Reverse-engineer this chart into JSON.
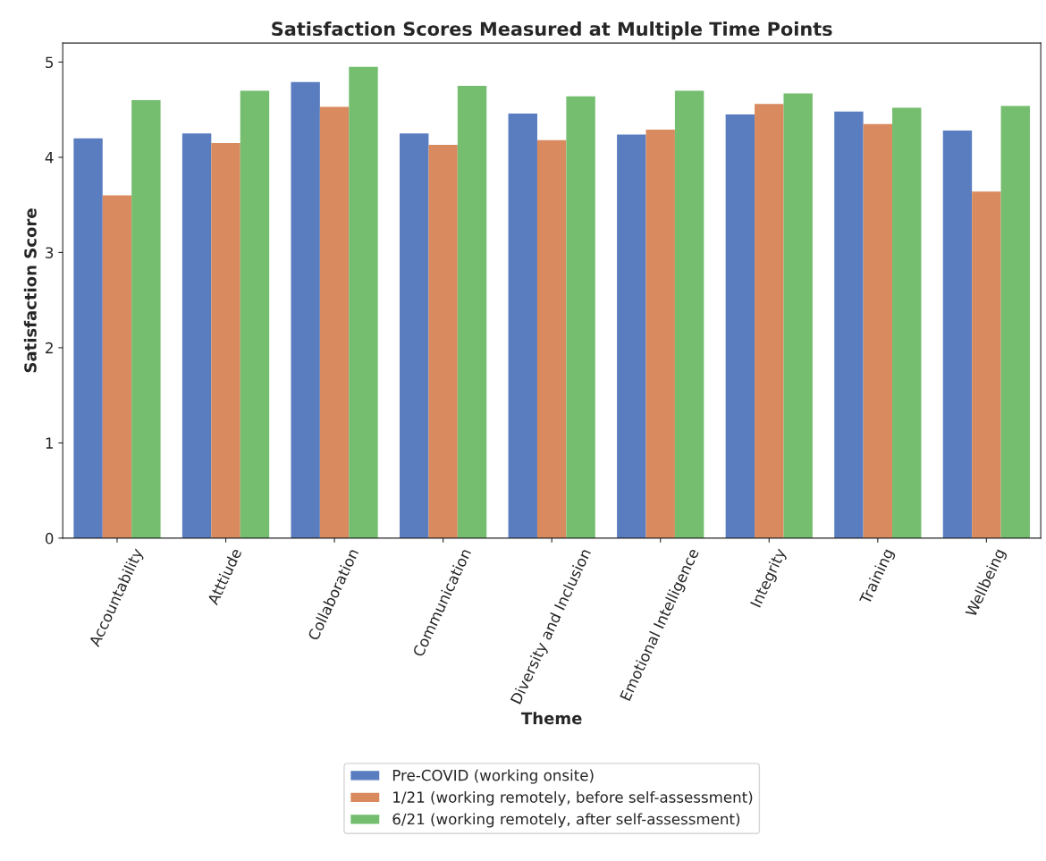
{
  "chart_data": {
    "type": "bar",
    "title": "Satisfaction Scores Measured at Multiple Time Points",
    "xlabel": "Theme",
    "ylabel": "Satisfaction Score",
    "categories": [
      "Accountability",
      "Atttiude",
      "Collaboration",
      "Communication",
      "Diversity and Inclusion",
      "Emotional Intelligence",
      "Integrity",
      "Training",
      "Wellbeing"
    ],
    "series": [
      {
        "name": "Pre-COVID (working onsite)",
        "color": "#5a7dc0",
        "values": [
          4.2,
          4.25,
          4.79,
          4.25,
          4.46,
          4.24,
          4.45,
          4.48,
          4.28
        ]
      },
      {
        "name": "1/21 (working remotely, before self-assessment)",
        "color": "#d98a5f",
        "values": [
          3.6,
          4.15,
          4.53,
          4.13,
          4.18,
          4.29,
          4.56,
          4.35,
          3.64
        ]
      },
      {
        "name": "6/21 (working remotely, after self-assessment)",
        "color": "#75be6f",
        "values": [
          4.6,
          4.7,
          4.95,
          4.75,
          4.64,
          4.7,
          4.67,
          4.52,
          4.54
        ]
      }
    ],
    "ylim": [
      0,
      5.2
    ],
    "yticks": [
      0,
      1,
      2,
      3,
      4,
      5
    ],
    "grid": false,
    "legend": "bottom"
  }
}
